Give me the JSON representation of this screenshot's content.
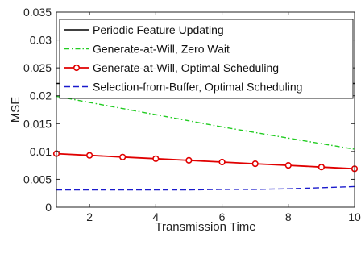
{
  "chart_data": {
    "type": "line",
    "title": "",
    "xlabel": "Transmission Time",
    "ylabel": "MSE",
    "xlim": [
      1,
      10
    ],
    "ylim": [
      0,
      0.035
    ],
    "x_ticks": [
      2,
      4,
      6,
      8,
      10
    ],
    "x_tick_labels": [
      "2",
      "4",
      "6",
      "8",
      "10"
    ],
    "y_ticks": [
      0,
      0.005,
      0.01,
      0.015,
      0.02,
      0.025,
      0.03,
      0.035
    ],
    "y_tick_labels": [
      "0",
      "0.005",
      "0.01",
      "0.015",
      "0.02",
      "0.025",
      "0.03",
      "0.035"
    ],
    "grid": false,
    "legend_position": "top",
    "series": [
      {
        "name": "Periodic Feature Updating",
        "color": "#000000",
        "line_style": "solid",
        "marker": "none",
        "x": [
          1,
          2,
          3,
          4,
          5,
          6,
          7,
          8,
          9,
          10
        ],
        "values": [
          0.0222,
          0.0222,
          0.0222,
          0.0222,
          0.0222,
          0.0222,
          0.0222,
          0.0222,
          0.0222,
          0.0222
        ]
      },
      {
        "name": "Generate-at-Will, Zero Wait",
        "color": "#22cc22",
        "line_style": "dashdot",
        "marker": "none",
        "x": [
          1,
          2,
          3,
          4,
          5,
          6,
          7,
          8,
          9,
          10
        ],
        "values": [
          0.0199,
          0.0188,
          0.0177,
          0.0166,
          0.0155,
          0.0144,
          0.0134,
          0.0124,
          0.0114,
          0.0104
        ]
      },
      {
        "name": "Generate-at-Will, Optimal Scheduling",
        "color": "#e00000",
        "line_style": "solid",
        "marker": "circle",
        "x": [
          1,
          2,
          3,
          4,
          5,
          6,
          7,
          8,
          9,
          10
        ],
        "values": [
          0.0096,
          0.0093,
          0.009,
          0.0087,
          0.0084,
          0.0081,
          0.0078,
          0.0075,
          0.0072,
          0.0069
        ]
      },
      {
        "name": "Selection-from-Buffer, Optimal Scheduling",
        "color": "#1a1acc",
        "line_style": "dashed",
        "marker": "none",
        "x": [
          1,
          2,
          3,
          4,
          5,
          6,
          7,
          8,
          9,
          10
        ],
        "values": [
          0.0031,
          0.0031,
          0.0031,
          0.0031,
          0.0031,
          0.0032,
          0.0032,
          0.0033,
          0.0035,
          0.0037
        ]
      }
    ]
  }
}
